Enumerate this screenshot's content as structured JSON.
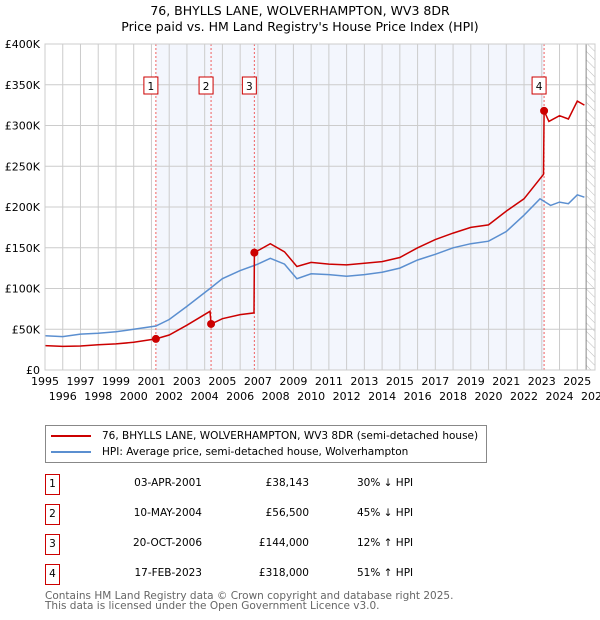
{
  "chart_data": {
    "type": "line",
    "title": "76, BHYLLS LANE, WOLVERHAMPTON, WV3 8DR",
    "subtitle": "Price paid vs. HM Land Registry's House Price Index (HPI)",
    "xlim": [
      1995,
      2026
    ],
    "ylim": [
      0,
      400000
    ],
    "grid": true,
    "x_ticks": [
      "1995",
      "1996",
      "1997",
      "1998",
      "1999",
      "2000",
      "2001",
      "2002",
      "2003",
      "2004",
      "2005",
      "2006",
      "2007",
      "2008",
      "2009",
      "2010",
      "2011",
      "2012",
      "2013",
      "2014",
      "2015",
      "2016",
      "2017",
      "2018",
      "2019",
      "2020",
      "2021",
      "2022",
      "2023",
      "2024",
      "2025",
      "2026"
    ],
    "y_ticks": [
      {
        "v": 0,
        "label": "£0"
      },
      {
        "v": 50000,
        "label": "£50K"
      },
      {
        "v": 100000,
        "label": "£100K"
      },
      {
        "v": 150000,
        "label": "£150K"
      },
      {
        "v": 200000,
        "label": "£200K"
      },
      {
        "v": 250000,
        "label": "£250K"
      },
      {
        "v": 300000,
        "label": "£300K"
      },
      {
        "v": 350000,
        "label": "£350K"
      },
      {
        "v": 400000,
        "label": "£400K"
      }
    ],
    "shaded_range": [
      2001.25,
      2023.13
    ],
    "forecast_hatch_from": 2025.5,
    "series": [
      {
        "name": "76, BHYLLS LANE, WOLVERHAMPTON, WV3 8DR (semi-detached house)",
        "color": "#cc0000",
        "points": [
          [
            1995,
            30000
          ],
          [
            1996,
            29000
          ],
          [
            1997,
            29500
          ],
          [
            1998,
            31000
          ],
          [
            1999,
            32000
          ],
          [
            2000,
            34000
          ],
          [
            2001.25,
            38143
          ],
          [
            2002,
            43000
          ],
          [
            2003,
            55000
          ],
          [
            2004.3,
            72000
          ],
          [
            2004.36,
            56500
          ],
          [
            2005,
            63000
          ],
          [
            2006,
            68000
          ],
          [
            2006.78,
            70000
          ],
          [
            2006.8,
            144000
          ],
          [
            2007.7,
            155000
          ],
          [
            2008.5,
            145000
          ],
          [
            2009.2,
            127000
          ],
          [
            2010,
            132000
          ],
          [
            2011,
            130000
          ],
          [
            2012,
            129000
          ],
          [
            2013,
            131000
          ],
          [
            2014,
            133000
          ],
          [
            2015,
            138000
          ],
          [
            2016,
            150000
          ],
          [
            2017,
            160000
          ],
          [
            2018,
            168000
          ],
          [
            2019,
            175000
          ],
          [
            2020,
            178000
          ],
          [
            2021,
            195000
          ],
          [
            2022,
            210000
          ],
          [
            2023.1,
            240000
          ],
          [
            2023.13,
            318000
          ],
          [
            2023.4,
            305000
          ],
          [
            2024,
            312000
          ],
          [
            2024.5,
            308000
          ],
          [
            2025,
            330000
          ],
          [
            2025.4,
            325000
          ]
        ]
      },
      {
        "name": "HPI: Average price, semi-detached house, Wolverhampton",
        "color": "#5b8fd0",
        "points": [
          [
            1995,
            42000
          ],
          [
            1996,
            41000
          ],
          [
            1997,
            44000
          ],
          [
            1998,
            45000
          ],
          [
            1999,
            47000
          ],
          [
            2000,
            50000
          ],
          [
            2001.25,
            54000
          ],
          [
            2002,
            62000
          ],
          [
            2003,
            78000
          ],
          [
            2004.3,
            100000
          ],
          [
            2005,
            112000
          ],
          [
            2006,
            122000
          ],
          [
            2007,
            130000
          ],
          [
            2007.7,
            137000
          ],
          [
            2008.5,
            130000
          ],
          [
            2009.2,
            112000
          ],
          [
            2010,
            118000
          ],
          [
            2011,
            117000
          ],
          [
            2012,
            115000
          ],
          [
            2013,
            117000
          ],
          [
            2014,
            120000
          ],
          [
            2015,
            125000
          ],
          [
            2016,
            135000
          ],
          [
            2017,
            142000
          ],
          [
            2018,
            150000
          ],
          [
            2019,
            155000
          ],
          [
            2020,
            158000
          ],
          [
            2021,
            170000
          ],
          [
            2022,
            190000
          ],
          [
            2022.9,
            210000
          ],
          [
            2023.5,
            202000
          ],
          [
            2024,
            206000
          ],
          [
            2024.5,
            204000
          ],
          [
            2025,
            215000
          ],
          [
            2025.4,
            212000
          ]
        ]
      }
    ],
    "sales": [
      {
        "num": "1",
        "x": 2001.25,
        "price": 38143
      },
      {
        "num": "2",
        "x": 2004.36,
        "price": 56500
      },
      {
        "num": "3",
        "x": 2006.8,
        "price": 144000
      },
      {
        "num": "4",
        "x": 2023.13,
        "price": 318000
      }
    ]
  },
  "legend": {
    "property": "76, BHYLLS LANE, WOLVERHAMPTON, WV3 8DR (semi-detached house)",
    "hpi": "HPI: Average price, semi-detached house, Wolverhampton"
  },
  "transactions": [
    {
      "num": "1",
      "date": "03-APR-2001",
      "price": "£38,143",
      "hpi": "30% ↓ HPI"
    },
    {
      "num": "2",
      "date": "10-MAY-2004",
      "price": "£56,500",
      "hpi": "45% ↓ HPI"
    },
    {
      "num": "3",
      "date": "20-OCT-2006",
      "price": "£144,000",
      "hpi": "12% ↑ HPI"
    },
    {
      "num": "4",
      "date": "17-FEB-2023",
      "price": "£318,000",
      "hpi": "51% ↑ HPI"
    }
  ],
  "footer": {
    "line1": "Contains HM Land Registry data © Crown copyright and database right 2025.",
    "line2": "This data is licensed under the Open Government Licence v3.0."
  }
}
